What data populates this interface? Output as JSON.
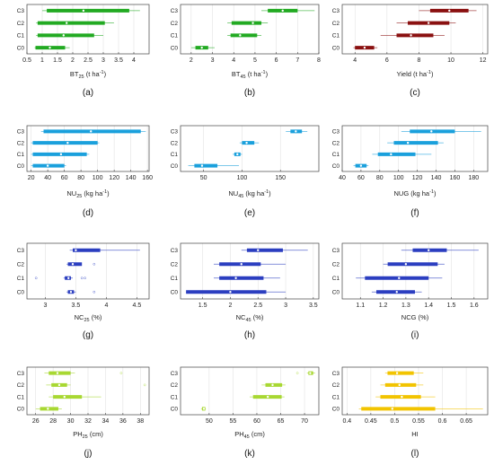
{
  "chart_data": [
    {
      "type": "box",
      "panel_label": "(a)",
      "xlabel": "BT",
      "xlabel_sub": "25",
      "xlabel_suffix": " (t ha",
      "xlabel_sup": "-1",
      "xlabel_end": ")",
      "categories": [
        "C3",
        "C2",
        "C1",
        "C0"
      ],
      "xlim": [
        0.5,
        4.5
      ],
      "ticks": [
        0.5,
        1,
        1.5,
        2,
        2.5,
        3,
        3.5,
        4
      ],
      "color": "#22aa22",
      "boxes": [
        {
          "whisker": [
            1.0,
            4.2
          ],
          "box": [
            1.15,
            3.85
          ],
          "median": 2.35,
          "outliers": []
        },
        {
          "whisker": [
            0.8,
            3.35
          ],
          "box": [
            0.85,
            3.05
          ],
          "median": 1.8,
          "outliers": []
        },
        {
          "whisker": [
            0.8,
            3.0
          ],
          "box": [
            0.85,
            2.7
          ],
          "median": 1.7,
          "outliers": []
        },
        {
          "whisker": [
            0.75,
            1.9
          ],
          "box": [
            0.78,
            1.75
          ],
          "median": 1.25,
          "outliers": []
        }
      ]
    },
    {
      "type": "box",
      "panel_label": "(b)",
      "xlabel": "BT",
      "xlabel_sub": "45",
      "xlabel_suffix": " (t ha",
      "xlabel_sup": "-1",
      "xlabel_end": ")",
      "categories": [
        "C3",
        "C2",
        "C1",
        "C0"
      ],
      "xlim": [
        1.5,
        8
      ],
      "ticks": [
        2,
        3,
        4,
        5,
        6,
        7,
        8
      ],
      "color": "#22aa22",
      "boxes": [
        {
          "whisker": [
            5.3,
            7.8
          ],
          "box": [
            5.6,
            7.0
          ],
          "median": 6.3,
          "outliers": []
        },
        {
          "whisker": [
            3.7,
            5.6
          ],
          "box": [
            3.9,
            5.3
          ],
          "median": 4.9,
          "outliers": []
        },
        {
          "whisker": [
            3.7,
            5.3
          ],
          "box": [
            3.85,
            5.1
          ],
          "median": 4.3,
          "outliers": []
        },
        {
          "whisker": [
            2.0,
            3.1
          ],
          "box": [
            2.2,
            2.8
          ],
          "median": 2.5,
          "outliers": []
        }
      ]
    },
    {
      "type": "box",
      "panel_label": "(c)",
      "xlabel": "Yield (t ha",
      "xlabel_sub": "",
      "xlabel_suffix": "",
      "xlabel_sup": "-1",
      "xlabel_end": ")",
      "categories": [
        "C3",
        "C2",
        "C1",
        "C0"
      ],
      "xlim": [
        3.2,
        12.3
      ],
      "ticks": [
        4,
        6,
        8,
        10,
        12
      ],
      "color": "#8a1010",
      "boxes": [
        {
          "whisker": [
            8.0,
            11.6
          ],
          "box": [
            8.7,
            11.1
          ],
          "median": 9.9,
          "outliers": []
        },
        {
          "whisker": [
            6.6,
            10.3
          ],
          "box": [
            7.3,
            9.9
          ],
          "median": 8.6,
          "outliers": []
        },
        {
          "whisker": [
            5.6,
            9.6
          ],
          "box": [
            6.6,
            8.9
          ],
          "median": 7.5,
          "outliers": []
        },
        {
          "whisker": [
            3.9,
            5.4
          ],
          "box": [
            4.0,
            5.2
          ],
          "median": 4.6,
          "outliers": []
        }
      ]
    },
    {
      "type": "box",
      "panel_label": "(d)",
      "xlabel": "NU",
      "xlabel_sub": "25",
      "xlabel_suffix": " (kg ha",
      "xlabel_sup": "-1",
      "xlabel_end": ")",
      "categories": [
        "C3",
        "C2",
        "C1",
        "C0"
      ],
      "xlim": [
        15,
        162
      ],
      "ticks": [
        20,
        40,
        60,
        80,
        100,
        120,
        140,
        160
      ],
      "color": "#1aa0dc",
      "boxes": [
        {
          "whisker": [
            32,
            158
          ],
          "box": [
            35,
            152
          ],
          "median": 92,
          "outliers": []
        },
        {
          "whisker": [
            20,
            102
          ],
          "box": [
            22,
            100
          ],
          "median": 64,
          "outliers": []
        },
        {
          "whisker": [
            20,
            90
          ],
          "box": [
            22,
            87
          ],
          "median": 56,
          "outliers": []
        },
        {
          "whisker": [
            20,
            62
          ],
          "box": [
            22,
            60
          ],
          "median": 40,
          "outliers": []
        }
      ]
    },
    {
      "type": "box",
      "panel_label": "(e)",
      "xlabel": "NU",
      "xlabel_sub": "45",
      "xlabel_suffix": " (kg ha",
      "xlabel_sup": "-1",
      "xlabel_end": ")",
      "categories": [
        "C3",
        "C2",
        "C1",
        "C0"
      ],
      "xlim": [
        20,
        200
      ],
      "ticks": [
        50,
        100,
        150
      ],
      "color": "#1aa0dc",
      "boxes": [
        {
          "whisker": [
            157,
            185
          ],
          "box": [
            163,
            178
          ],
          "median": 170,
          "outliers": []
        },
        {
          "whisker": [
            97,
            122
          ],
          "box": [
            100,
            116
          ],
          "median": 106,
          "outliers": []
        },
        {
          "whisker": [
            88,
            100
          ],
          "box": [
            90,
            98
          ],
          "median": 94,
          "outliers": []
        },
        {
          "whisker": [
            30,
            96
          ],
          "box": [
            38,
            68
          ],
          "median": 48,
          "outliers": []
        }
      ]
    },
    {
      "type": "box",
      "panel_label": "(f)",
      "xlabel": "NUG (kg ha",
      "xlabel_sub": "",
      "xlabel_suffix": "",
      "xlabel_sup": "-1",
      "xlabel_end": ")",
      "categories": [
        "C3",
        "C2",
        "C1",
        "C0"
      ],
      "xlim": [
        40,
        195
      ],
      "ticks": [
        40,
        60,
        80,
        100,
        120,
        140,
        160,
        180
      ],
      "color": "#1aa0dc",
      "boxes": [
        {
          "whisker": [
            103,
            188
          ],
          "box": [
            112,
            160
          ],
          "median": 135,
          "outliers": []
        },
        {
          "whisker": [
            88,
            148
          ],
          "box": [
            95,
            142
          ],
          "median": 110,
          "outliers": []
        },
        {
          "whisker": [
            72,
            135
          ],
          "box": [
            78,
            118
          ],
          "median": 92,
          "outliers": []
        },
        {
          "whisker": [
            52,
            68
          ],
          "box": [
            54,
            66
          ],
          "median": 60,
          "outliers": []
        }
      ]
    },
    {
      "type": "box",
      "panel_label": "(g)",
      "xlabel": "NC",
      "xlabel_sub": "25",
      "xlabel_suffix": " (%)",
      "xlabel_sup": "",
      "xlabel_end": "",
      "categories": [
        "C3",
        "C2",
        "C1",
        "C0"
      ],
      "xlim": [
        2.7,
        4.7
      ],
      "ticks": [
        3,
        3.5,
        4,
        4.5
      ],
      "color": "#2b3ec0",
      "boxes": [
        {
          "whisker": [
            3.4,
            4.55
          ],
          "box": [
            3.45,
            3.9
          ],
          "median": 3.5,
          "outliers": []
        },
        {
          "whisker": [
            3.35,
            3.55
          ],
          "box": [
            3.37,
            3.6
          ],
          "median": 3.45,
          "outliers": [
            3.8
          ]
        },
        {
          "whisker": [
            3.3,
            3.45
          ],
          "box": [
            3.32,
            3.42
          ],
          "median": 3.38,
          "outliers": [
            2.85,
            3.6,
            3.65
          ]
        },
        {
          "whisker": [
            3.35,
            3.5
          ],
          "box": [
            3.37,
            3.47
          ],
          "median": 3.42,
          "outliers": [
            3.8
          ]
        }
      ]
    },
    {
      "type": "box",
      "panel_label": "(h)",
      "xlabel": "NC",
      "xlabel_sub": "45",
      "xlabel_suffix": " (%)",
      "xlabel_sup": "",
      "xlabel_end": "",
      "categories": [
        "C3",
        "C2",
        "C1",
        "C0"
      ],
      "xlim": [
        1.1,
        3.6
      ],
      "ticks": [
        1.5,
        2,
        2.5,
        3,
        3.5
      ],
      "color": "#2b3ec0",
      "boxes": [
        {
          "whisker": [
            2.2,
            3.4
          ],
          "box": [
            2.3,
            2.95
          ],
          "median": 2.5,
          "outliers": []
        },
        {
          "whisker": [
            1.7,
            3.0
          ],
          "box": [
            1.8,
            2.55
          ],
          "median": 2.2,
          "outliers": []
        },
        {
          "whisker": [
            1.7,
            2.9
          ],
          "box": [
            1.8,
            2.6
          ],
          "median": 2.1,
          "outliers": []
        },
        {
          "whisker": [
            1.2,
            3.0
          ],
          "box": [
            1.2,
            2.65
          ],
          "median": 2.0,
          "outliers": []
        }
      ]
    },
    {
      "type": "box",
      "panel_label": "(i)",
      "xlabel": "NCG (%)",
      "xlabel_sub": "",
      "xlabel_suffix": "",
      "xlabel_sup": "",
      "xlabel_end": "",
      "categories": [
        "C3",
        "C2",
        "C1",
        "C0"
      ],
      "xlim": [
        1.02,
        1.66
      ],
      "ticks": [
        1.1,
        1.2,
        1.3,
        1.4,
        1.5,
        1.6
      ],
      "color": "#2b3ec0",
      "boxes": [
        {
          "whisker": [
            1.28,
            1.62
          ],
          "box": [
            1.33,
            1.48
          ],
          "median": 1.4,
          "outliers": []
        },
        {
          "whisker": [
            1.2,
            1.47
          ],
          "box": [
            1.22,
            1.44
          ],
          "median": 1.3,
          "outliers": []
        },
        {
          "whisker": [
            1.08,
            1.46
          ],
          "box": [
            1.12,
            1.4
          ],
          "median": 1.27,
          "outliers": []
        },
        {
          "whisker": [
            1.15,
            1.37
          ],
          "box": [
            1.17,
            1.34
          ],
          "median": 1.26,
          "outliers": []
        }
      ]
    },
    {
      "type": "box",
      "panel_label": "(j)",
      "xlabel": "PH",
      "xlabel_sub": "25",
      "xlabel_suffix": " (cm)",
      "xlabel_sup": "",
      "xlabel_end": "",
      "categories": [
        "C3",
        "C2",
        "C1",
        "C0"
      ],
      "xlim": [
        25,
        39
      ],
      "ticks": [
        26,
        28,
        30,
        32,
        34,
        36,
        38
      ],
      "color": "#a8d832",
      "boxes": [
        {
          "whisker": [
            27,
            30.5
          ],
          "box": [
            27.5,
            30
          ],
          "median": 28.5,
          "outliers": [
            35.8
          ]
        },
        {
          "whisker": [
            27.2,
            30
          ],
          "box": [
            27.8,
            29.6
          ],
          "median": 28.7,
          "outliers": [
            38.5
          ]
        },
        {
          "whisker": [
            27.5,
            33.5
          ],
          "box": [
            28,
            31.3
          ],
          "median": 29.3,
          "outliers": []
        },
        {
          "whisker": [
            26,
            29
          ],
          "box": [
            26.5,
            28.6
          ],
          "median": 27.4,
          "outliers": []
        }
      ]
    },
    {
      "type": "box",
      "panel_label": "(k)",
      "xlabel": "PH",
      "xlabel_sub": "45",
      "xlabel_suffix": " (cm)",
      "xlabel_sup": "",
      "xlabel_end": "",
      "categories": [
        "C3",
        "C2",
        "C1",
        "C0"
      ],
      "xlim": [
        44,
        73
      ],
      "ticks": [
        50,
        55,
        60,
        65,
        70
      ],
      "color": "#a8d832",
      "boxes": [
        {
          "whisker": [
            70.5,
            72.2
          ],
          "box": [
            70.8,
            71.8
          ],
          "median": 71.2,
          "outliers": [
            68.5
          ]
        },
        {
          "whisker": [
            61,
            66
          ],
          "box": [
            61.8,
            65.3
          ],
          "median": 63.3,
          "outliers": []
        },
        {
          "whisker": [
            58.5,
            65.8
          ],
          "box": [
            59.2,
            65.2
          ],
          "median": 62.3,
          "outliers": []
        },
        {
          "whisker": [
            48.3,
            49.3
          ],
          "box": [
            48.5,
            49.2
          ],
          "median": 48.9,
          "outliers": []
        }
      ]
    },
    {
      "type": "box",
      "panel_label": "(l)",
      "xlabel": "HI",
      "xlabel_sub": "",
      "xlabel_suffix": "",
      "xlabel_sup": "",
      "xlabel_end": "",
      "categories": [
        "C3",
        "C2",
        "C1",
        "C0"
      ],
      "xlim": [
        0.39,
        0.695
      ],
      "ticks": [
        0.4,
        0.45,
        0.5,
        0.55,
        0.6,
        0.65
      ],
      "color": "#f2c400",
      "boxes": [
        {
          "whisker": [
            0.48,
            0.56
          ],
          "box": [
            0.485,
            0.54
          ],
          "median": 0.505,
          "outliers": []
        },
        {
          "whisker": [
            0.47,
            0.56
          ],
          "box": [
            0.48,
            0.545
          ],
          "median": 0.51,
          "outliers": []
        },
        {
          "whisker": [
            0.46,
            0.585
          ],
          "box": [
            0.47,
            0.555
          ],
          "median": 0.515,
          "outliers": []
        },
        {
          "whisker": [
            0.425,
            0.685
          ],
          "box": [
            0.43,
            0.585
          ],
          "median": 0.495,
          "outliers": []
        }
      ]
    }
  ]
}
